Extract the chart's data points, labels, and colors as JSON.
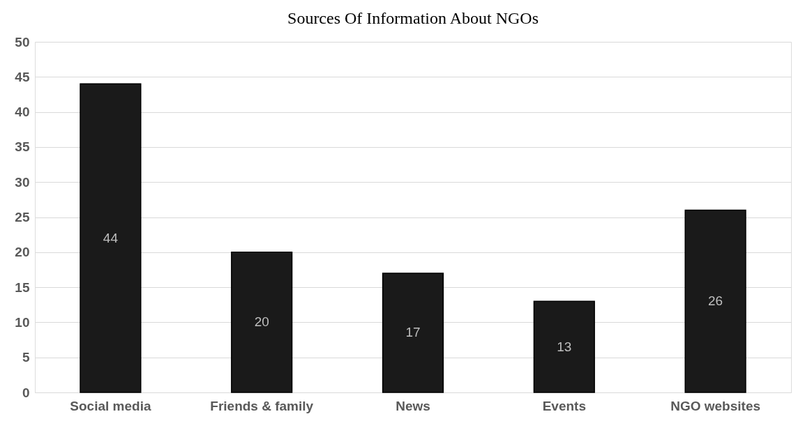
{
  "chart_data": {
    "type": "bar",
    "title": "Sources Of Information About NGOs",
    "categories": [
      "Social media",
      "Friends & family",
      "News",
      "Events",
      "NGO websites"
    ],
    "values": [
      44,
      20,
      17,
      13,
      26
    ],
    "color": "#1a1a1a",
    "ylim": [
      0,
      50
    ],
    "yticks": [
      0,
      5,
      10,
      15,
      20,
      25,
      30,
      35,
      40,
      45,
      50
    ],
    "grid": "y",
    "data_labels": true
  }
}
